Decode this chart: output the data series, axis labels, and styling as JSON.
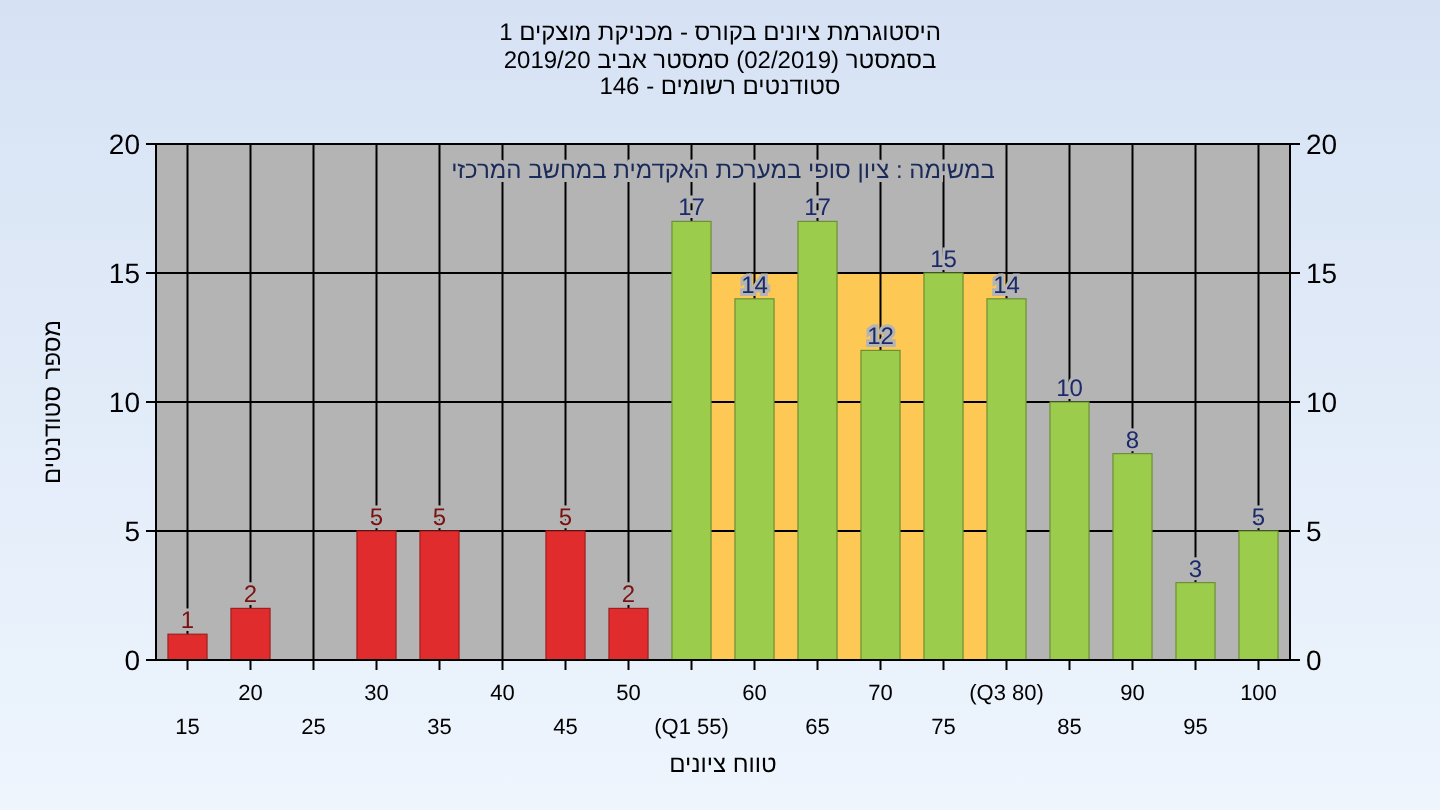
{
  "chart_data": {
    "type": "bar",
    "title": "היסטוגרמת ציונים בקורס - מכניקת מוצקים 1",
    "subtitle": "בסמסטר  (02/2019)  סמסטר אביב 2019/20\nסטודנטים רשומים - 146",
    "annotations": [
      "במשימה : ציון סופי במערכת האקדמית במחשב המרכזי"
    ],
    "xlabel": "טווח ציונים",
    "ylabel": "מספר סטודנטים",
    "categories": [
      "15",
      "20",
      "25",
      "30",
      "35",
      "40",
      "45",
      "50",
      "(Q1 55)",
      "60",
      "65",
      "70",
      "75",
      "(Q3 80)",
      "85",
      "90",
      "95",
      "100"
    ],
    "values": [
      1,
      2,
      null,
      5,
      5,
      null,
      5,
      2,
      17,
      14,
      17,
      12,
      15,
      14,
      10,
      8,
      3,
      5
    ],
    "colors": [
      "#e02c2c",
      "#e02c2c",
      null,
      "#e02c2c",
      "#e02c2c",
      null,
      "#e02c2c",
      "#e02c2c",
      "#9ccc4c",
      "#9ccc4c",
      "#9ccc4c",
      "#9ccc4c",
      "#9ccc4c",
      "#9ccc4c",
      "#9ccc4c",
      "#9ccc4c",
      "#9ccc4c",
      "#9ccc4c"
    ],
    "bands": [
      {
        "axis": "x",
        "from": "(Q1 55)",
        "to": "(Q3 80)",
        "color": "#fdc853"
      }
    ],
    "ylim": [
      0,
      20
    ],
    "yticks": [
      0,
      5,
      10,
      15,
      20
    ],
    "y2lim": [
      0,
      20
    ],
    "y2ticks": [
      0,
      5,
      10,
      15,
      20
    ],
    "grid": true,
    "data_labels": true
  }
}
